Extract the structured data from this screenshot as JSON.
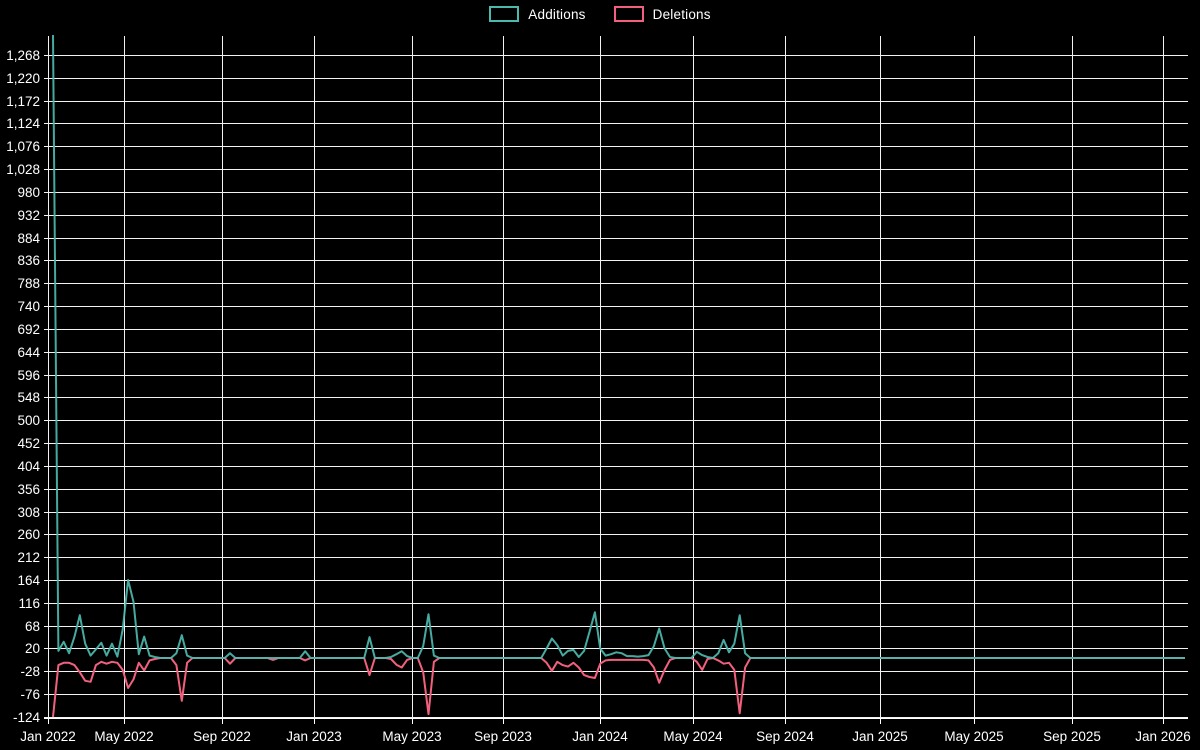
{
  "legend": {
    "items": [
      {
        "label": "Additions",
        "color": "#4db8ae"
      },
      {
        "label": "Deletions",
        "color": "#f2607e"
      }
    ]
  },
  "colors": {
    "background": "#000000",
    "text": "#ffffff",
    "grid": "#f2f2f2",
    "axis": "#ffffff",
    "additions": "#4db8ae",
    "deletions": "#f2607e"
  },
  "chart_data": {
    "type": "line",
    "title": "",
    "legend_position": "top-center",
    "grid": true,
    "x_axis": {
      "tick_labels": [
        "Jan 2022",
        "May 2022",
        "Sep 2022",
        "Jan 2023",
        "May 2023",
        "Sep 2023",
        "Jan 2024",
        "May 2024",
        "Sep 2024",
        "Jan 2025",
        "May 2025",
        "Sep 2025",
        "Jan 2026"
      ]
    },
    "y_axis": {
      "tick_values": [
        -124,
        -76,
        -28,
        20,
        68,
        116,
        164,
        212,
        260,
        308,
        356,
        404,
        452,
        500,
        548,
        596,
        644,
        692,
        740,
        788,
        836,
        884,
        932,
        980,
        1028,
        1076,
        1124,
        1172,
        1220,
        1268
      ],
      "tick_labels": [
        "-124",
        "-76",
        "-28",
        "20",
        "68",
        "116",
        "164",
        "212",
        "260",
        "308",
        "356",
        "404",
        "452",
        "500",
        "548",
        "596",
        "644",
        "692",
        "740",
        "788",
        "836",
        "884",
        "932",
        "980",
        "1,028",
        "1,076",
        "1,124",
        "1,172",
        "1,220",
        "1,268"
      ],
      "range": [
        -124,
        1310
      ]
    },
    "series_names": [
      "Additions",
      "Deletions"
    ],
    "points_note": "weekly samples; index 0 = first week of Jan 2022, last index = late Jan 2026; sparse triplets [week_index, additions, deletions]; all weeks not listed are [0,0]",
    "n_points": 212,
    "points": [
      [
        0,
        1310,
        -124
      ],
      [
        1,
        15,
        -15
      ],
      [
        2,
        34,
        -10
      ],
      [
        3,
        10,
        -10
      ],
      [
        4,
        45,
        -15
      ],
      [
        5,
        90,
        -30
      ],
      [
        6,
        30,
        -48
      ],
      [
        7,
        5,
        -50
      ],
      [
        8,
        18,
        -15
      ],
      [
        9,
        32,
        -8
      ],
      [
        10,
        5,
        -12
      ],
      [
        11,
        30,
        -8
      ],
      [
        12,
        3,
        -10
      ],
      [
        13,
        60,
        -25
      ],
      [
        14,
        164,
        -63
      ],
      [
        15,
        118,
        -45
      ],
      [
        16,
        8,
        -10
      ],
      [
        17,
        45,
        -26
      ],
      [
        18,
        5,
        -5
      ],
      [
        19,
        2,
        -2
      ],
      [
        23,
        10,
        -15
      ],
      [
        24,
        48,
        -90
      ],
      [
        25,
        5,
        -10
      ],
      [
        33,
        10,
        -12
      ],
      [
        41,
        0,
        -4
      ],
      [
        47,
        14,
        -5
      ],
      [
        59,
        44,
        -36
      ],
      [
        63,
        2,
        -2
      ],
      [
        64,
        8,
        -14
      ],
      [
        65,
        14,
        -20
      ],
      [
        66,
        4,
        -4
      ],
      [
        69,
        25,
        -30
      ],
      [
        70,
        92,
        -118
      ],
      [
        71,
        5,
        -8
      ],
      [
        92,
        20,
        -10
      ],
      [
        93,
        41,
        -27
      ],
      [
        94,
        27,
        -8
      ],
      [
        95,
        5,
        -15
      ],
      [
        96,
        15,
        -18
      ],
      [
        97,
        17,
        -10
      ],
      [
        98,
        2,
        -20
      ],
      [
        99,
        15,
        -36
      ],
      [
        100,
        55,
        -40
      ],
      [
        101,
        96,
        -42
      ],
      [
        102,
        20,
        -12
      ],
      [
        103,
        5,
        -5
      ],
      [
        104,
        8,
        -4
      ],
      [
        105,
        12,
        -4
      ],
      [
        106,
        10,
        -4
      ],
      [
        107,
        4,
        -4
      ],
      [
        108,
        4,
        -4
      ],
      [
        109,
        3,
        -4
      ],
      [
        110,
        4,
        -4
      ],
      [
        111,
        6,
        -5
      ],
      [
        112,
        25,
        -20
      ],
      [
        113,
        62,
        -52
      ],
      [
        114,
        20,
        -25
      ],
      [
        115,
        2,
        -4
      ],
      [
        120,
        13,
        -8
      ],
      [
        121,
        6,
        -25
      ],
      [
        122,
        2,
        -2
      ],
      [
        124,
        10,
        -5
      ],
      [
        125,
        38,
        -12
      ],
      [
        126,
        12,
        -10
      ],
      [
        127,
        30,
        -25
      ],
      [
        128,
        90,
        -116
      ],
      [
        129,
        10,
        -20
      ]
    ]
  }
}
